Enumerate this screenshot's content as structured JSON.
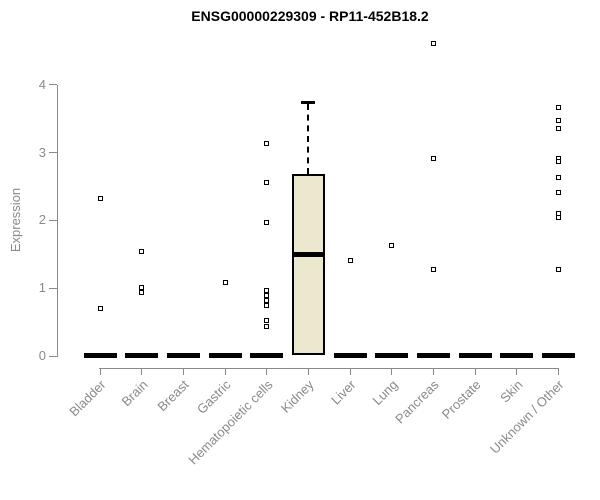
{
  "chart_data": {
    "type": "boxplot",
    "title": "ENSG00000229309 - RP11-452B18.2",
    "ylabel": "Expression",
    "xlabel": "",
    "ylim": [
      0,
      4
    ],
    "yticks": [
      0,
      1,
      2,
      3,
      4
    ],
    "grid": false,
    "legend": "none",
    "colors": {
      "box_fill": "#ece8cd",
      "box_border": "#000000",
      "axis": "#8a8a8a",
      "tick_text": "#8a8a8a",
      "title_text": "#000000"
    },
    "categories": [
      "Bladder",
      "Brain",
      "Breast",
      "Gastric",
      "Hematopoietic cells",
      "Kidney",
      "Liver",
      "Lung",
      "Pancreas",
      "Prostate",
      "Skin",
      "Unknown / Other"
    ],
    "series": [
      {
        "category": "Bladder",
        "q1": 0,
        "median": 0,
        "q3": 0,
        "whisker_low": 0,
        "whisker_high": 0,
        "outliers": [
          2.32,
          0.7
        ]
      },
      {
        "category": "Brain",
        "q1": 0,
        "median": 0,
        "q3": 0,
        "whisker_low": 0,
        "whisker_high": 0,
        "outliers": [
          1.54,
          1.01,
          0.94
        ]
      },
      {
        "category": "Breast",
        "q1": 0,
        "median": 0,
        "q3": 0,
        "whisker_low": 0,
        "whisker_high": 0,
        "outliers": []
      },
      {
        "category": "Gastric",
        "q1": 0,
        "median": 0,
        "q3": 0,
        "whisker_low": 0,
        "whisker_high": 0,
        "outliers": [
          1.09
        ]
      },
      {
        "category": "Hematopoietic cells",
        "q1": 0,
        "median": 0,
        "q3": 0,
        "whisker_low": 0,
        "whisker_high": 0,
        "outliers": [
          3.14,
          2.56,
          1.97,
          0.96,
          0.89,
          0.82,
          0.75,
          0.52,
          0.43
        ]
      },
      {
        "category": "Kidney",
        "q1": 0.02,
        "median": 1.5,
        "q3": 2.68,
        "whisker_low": 0.02,
        "whisker_high": 3.74,
        "outliers": []
      },
      {
        "category": "Liver",
        "q1": 0,
        "median": 0,
        "q3": 0,
        "whisker_low": 0,
        "whisker_high": 0,
        "outliers": [
          1.41
        ]
      },
      {
        "category": "Lung",
        "q1": 0,
        "median": 0,
        "q3": 0,
        "whisker_low": 0,
        "whisker_high": 0,
        "outliers": [
          1.63
        ]
      },
      {
        "category": "Pancreas",
        "q1": 0,
        "median": 0,
        "q3": 0,
        "whisker_low": 0,
        "whisker_high": 0,
        "outliers": [
          4.61,
          2.91,
          1.27
        ]
      },
      {
        "category": "Prostate",
        "q1": 0,
        "median": 0,
        "q3": 0,
        "whisker_low": 0,
        "whisker_high": 0,
        "outliers": []
      },
      {
        "category": "Skin",
        "q1": 0,
        "median": 0,
        "q3": 0,
        "whisker_low": 0,
        "whisker_high": 0,
        "outliers": []
      },
      {
        "category": "Unknown / Other",
        "q1": 0,
        "median": 0,
        "q3": 0,
        "whisker_low": 0,
        "whisker_high": 0,
        "outliers": [
          3.67,
          3.47,
          3.36,
          2.91,
          2.87,
          2.64,
          2.41,
          2.1,
          2.05,
          1.27
        ]
      }
    ]
  }
}
